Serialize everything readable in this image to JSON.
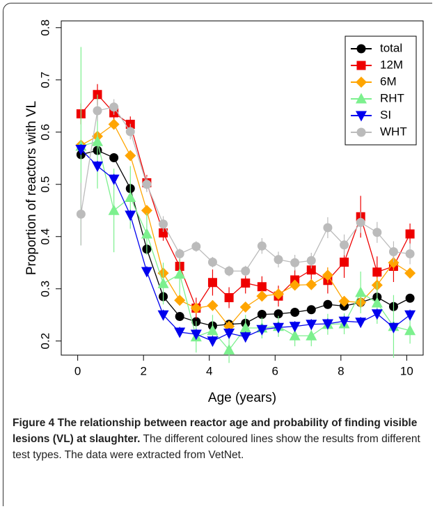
{
  "chart_data": {
    "type": "line",
    "x_label": "Age (years)",
    "y_label": "Proportion of reactors with VL",
    "x": [
      0.1,
      0.6,
      1.1,
      1.6,
      2.1,
      2.6,
      3.1,
      3.6,
      4.1,
      4.6,
      5.1,
      5.6,
      6.1,
      6.6,
      7.1,
      7.6,
      8.1,
      8.6,
      9.1,
      9.6,
      10.1
    ],
    "series": [
      {
        "name": "total",
        "color": "#000000",
        "marker": "circle",
        "values": [
          0.557,
          0.565,
          0.551,
          0.492,
          0.376,
          0.285,
          0.247,
          0.237,
          0.229,
          0.232,
          0.234,
          0.251,
          0.252,
          0.255,
          0.26,
          0.27,
          0.267,
          0.274,
          0.284,
          0.266,
          0.282
        ],
        "errors": [
          0.005,
          0.005,
          0.005,
          0.005,
          0.005,
          0.005,
          0.005,
          0.005,
          0.005,
          0.005,
          0.005,
          0.005,
          0.005,
          0.005,
          0.005,
          0.005,
          0.005,
          0.005,
          0.005,
          0.005,
          0.005
        ]
      },
      {
        "name": "12M",
        "color": "#ee0000",
        "marker": "square",
        "values": [
          0.635,
          0.672,
          0.637,
          0.615,
          0.503,
          0.407,
          0.343,
          0.263,
          0.312,
          0.283,
          0.311,
          0.304,
          0.286,
          0.317,
          0.336,
          0.316,
          0.351,
          0.438,
          0.332,
          0.343,
          0.405
        ],
        "errors": [
          0.02,
          0.02,
          0.02,
          0.015,
          0.015,
          0.015,
          0.02,
          0.02,
          0.025,
          0.02,
          0.02,
          0.02,
          0.02,
          0.02,
          0.02,
          0.025,
          0.03,
          0.04,
          0.03,
          0.03,
          0.02
        ]
      },
      {
        "name": "6M",
        "color": "#ffa500",
        "marker": "diamond",
        "values": [
          0.575,
          0.592,
          0.615,
          0.555,
          0.45,
          0.33,
          0.278,
          0.263,
          0.268,
          0.228,
          0.265,
          0.286,
          0.29,
          0.307,
          0.308,
          0.326,
          0.276,
          0.274,
          0.307,
          0.35,
          0.33
        ],
        "errors": [
          0.01,
          0.01,
          0.01,
          0.01,
          0.01,
          0.01,
          0.01,
          0.01,
          0.01,
          0.01,
          0.01,
          0.01,
          0.01,
          0.01,
          0.01,
          0.015,
          0.01,
          0.01,
          0.015,
          0.015,
          0.01
        ]
      },
      {
        "name": "RHT",
        "color": "#7cf08e",
        "marker": "triangle-up",
        "values": [
          0.573,
          0.582,
          0.45,
          0.475,
          0.405,
          0.31,
          0.328,
          0.208,
          0.22,
          0.183,
          0.225,
          0.225,
          0.228,
          0.21,
          0.21,
          0.232,
          0.233,
          0.293,
          0.273,
          0.228,
          0.22
        ],
        "errors": [
          0.19,
          0.09,
          0.08,
          0.06,
          0.04,
          0.04,
          0.04,
          0.03,
          0.03,
          0.025,
          0.025,
          0.02,
          0.02,
          0.02,
          0.02,
          0.02,
          0.02,
          0.04,
          0.04,
          0.06,
          0.025
        ]
      },
      {
        "name": "SI",
        "color": "#0000ee",
        "marker": "triangle-down",
        "values": [
          0.567,
          0.535,
          0.51,
          0.441,
          0.333,
          0.25,
          0.217,
          0.213,
          0.2,
          0.215,
          0.208,
          0.222,
          0.226,
          0.228,
          0.232,
          0.233,
          0.238,
          0.236,
          0.252,
          0.226,
          0.25
        ],
        "errors": [
          0.01,
          0.01,
          0.01,
          0.01,
          0.01,
          0.01,
          0.01,
          0.01,
          0.01,
          0.01,
          0.01,
          0.01,
          0.01,
          0.01,
          0.01,
          0.01,
          0.01,
          0.01,
          0.01,
          0.01,
          0.01
        ]
      },
      {
        "name": "WHT",
        "color": "#bbbbbb",
        "marker": "circle",
        "values": [
          0.443,
          0.641,
          0.648,
          0.601,
          0.5,
          0.424,
          0.367,
          0.381,
          0.351,
          0.334,
          0.334,
          0.382,
          0.356,
          0.35,
          0.354,
          0.417,
          0.384,
          0.427,
          0.408,
          0.371,
          0.367
        ],
        "errors": [
          0.06,
          0.02,
          0.015,
          0.015,
          0.015,
          0.015,
          0.01,
          0.01,
          0.01,
          0.01,
          0.01,
          0.015,
          0.015,
          0.015,
          0.015,
          0.02,
          0.02,
          0.02,
          0.02,
          0.02,
          0.02
        ]
      }
    ],
    "xlim": [
      -0.5,
      10.5
    ],
    "xticks": [
      0,
      2,
      4,
      6,
      8,
      10
    ],
    "ylim": [
      0.173,
      0.813
    ],
    "yticks": [
      0.2,
      0.3,
      0.4,
      0.5,
      0.6,
      0.7,
      0.8
    ],
    "legend": "top-right",
    "grid": false
  },
  "caption": {
    "label": "Figure 4 The relationship between reactor age and probability of finding visible lesions (VL) at slaughter.",
    "text": "The different coloured lines show the results from different test types. The data were extracted from VetNet."
  }
}
